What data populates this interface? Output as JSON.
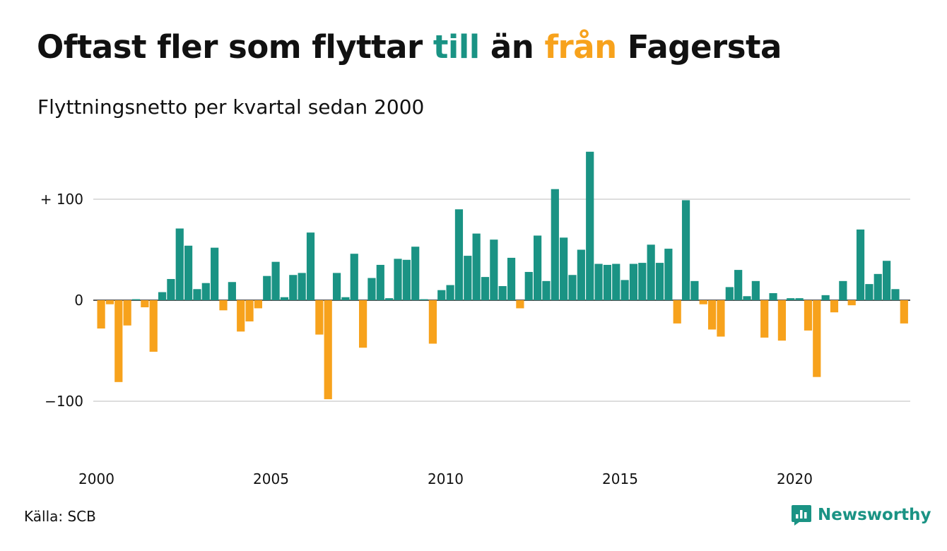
{
  "title": {
    "part1": "Oftast fler som flyttar ",
    "part2": "till",
    "part3": " än ",
    "part4": "från",
    "part5": " Fagersta"
  },
  "subtitle": "Flyttningsnetto per kvartal sedan 2000",
  "source": "Källa: SCB",
  "brand": "Newsworthy",
  "colors": {
    "positive": "#1a9384",
    "negative": "#f7a21c",
    "gridline": "#dddddd",
    "zeroline": "#222222",
    "brand": "#1a9384"
  },
  "chart_data": {
    "type": "bar",
    "x_start": "2000-Q1",
    "period": "quarter",
    "values": [
      -28,
      -4,
      -81,
      -25,
      1,
      -7,
      -51,
      8,
      21,
      71,
      54,
      11,
      17,
      52,
      -10,
      18,
      -31,
      -21,
      -8,
      24,
      38,
      3,
      25,
      27,
      67,
      -34,
      -98,
      27,
      3,
      46,
      -47,
      22,
      35,
      2,
      41,
      40,
      53,
      1,
      -43,
      10,
      15,
      90,
      44,
      66,
      23,
      60,
      14,
      42,
      -8,
      28,
      64,
      19,
      110,
      62,
      25,
      50,
      147,
      36,
      35,
      36,
      20,
      36,
      37,
      55,
      37,
      51,
      -23,
      99,
      19,
      -4,
      -29,
      -36,
      13,
      30,
      4,
      19,
      -37,
      7,
      -40,
      2,
      2,
      -30,
      -76,
      5,
      -12,
      19,
      -5,
      70,
      16,
      26,
      39,
      11,
      -23
    ],
    "yticks": [
      100,
      0,
      -100
    ],
    "ytick_labels": [
      "+ 100",
      "0",
      "−100"
    ],
    "xticks": [
      2000,
      2005,
      2010,
      2015,
      2020
    ],
    "xtick_labels": [
      "2000",
      "2005",
      "2010",
      "2015",
      "2020"
    ],
    "ylim": [
      -150,
      150
    ],
    "grid": true
  }
}
